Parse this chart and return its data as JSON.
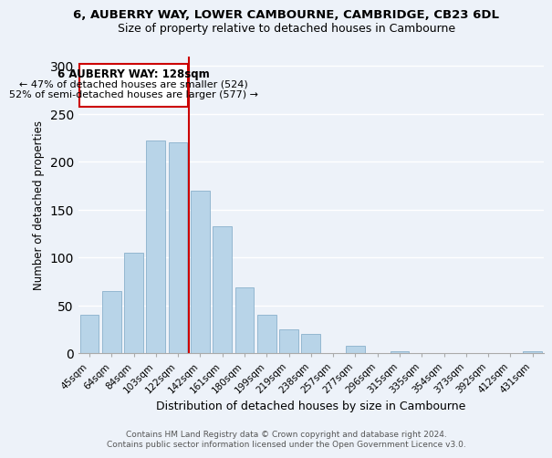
{
  "title": "6, AUBERRY WAY, LOWER CAMBOURNE, CAMBRIDGE, CB23 6DL",
  "subtitle": "Size of property relative to detached houses in Cambourne",
  "xlabel": "Distribution of detached houses by size in Cambourne",
  "ylabel": "Number of detached properties",
  "bar_labels": [
    "45sqm",
    "64sqm",
    "84sqm",
    "103sqm",
    "122sqm",
    "142sqm",
    "161sqm",
    "180sqm",
    "199sqm",
    "219sqm",
    "238sqm",
    "257sqm",
    "277sqm",
    "296sqm",
    "315sqm",
    "335sqm",
    "354sqm",
    "373sqm",
    "392sqm",
    "412sqm",
    "431sqm"
  ],
  "bar_heights": [
    40,
    65,
    105,
    222,
    220,
    170,
    133,
    69,
    40,
    25,
    20,
    0,
    8,
    0,
    2,
    0,
    0,
    0,
    0,
    0,
    2
  ],
  "bar_color": "#b8d4e8",
  "bar_edge_color": "#8ab0cc",
  "vline_x": 4.5,
  "vline_color": "#cc0000",
  "annotation_title": "6 AUBERRY WAY: 128sqm",
  "annotation_line1": "← 47% of detached houses are smaller (524)",
  "annotation_line2": "52% of semi-detached houses are larger (577) →",
  "annotation_box_color": "#ffffff",
  "annotation_box_edge": "#cc0000",
  "ylim": [
    0,
    310
  ],
  "yticks": [
    0,
    50,
    100,
    150,
    200,
    250,
    300
  ],
  "footer1": "Contains HM Land Registry data © Crown copyright and database right 2024.",
  "footer2": "Contains public sector information licensed under the Open Government Licence v3.0.",
  "background_color": "#edf2f9"
}
